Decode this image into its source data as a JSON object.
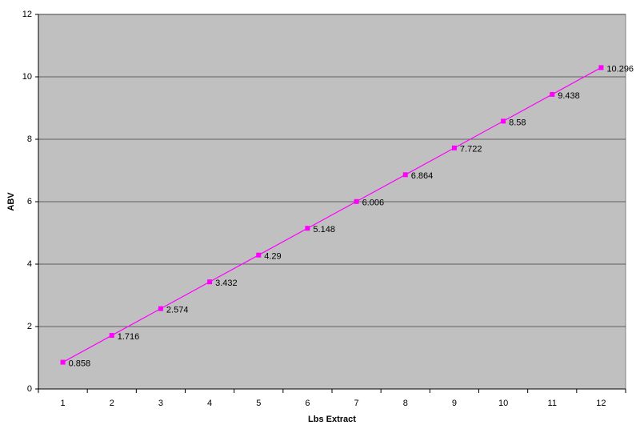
{
  "chart_data": {
    "type": "line",
    "x_label": "Lbs Extract",
    "y_label": "ABV",
    "categories": [
      1,
      2,
      3,
      4,
      5,
      6,
      7,
      8,
      9,
      10,
      11,
      12
    ],
    "values": [
      0.858,
      1.716,
      2.574,
      3.432,
      4.29,
      5.148,
      6.006,
      6.864,
      7.722,
      8.58,
      9.438,
      10.296
    ],
    "color": "#ff00ff",
    "ylim": [
      0,
      12
    ],
    "yticks": [
      0,
      2,
      4,
      6,
      8,
      10,
      12
    ],
    "grid": true
  }
}
